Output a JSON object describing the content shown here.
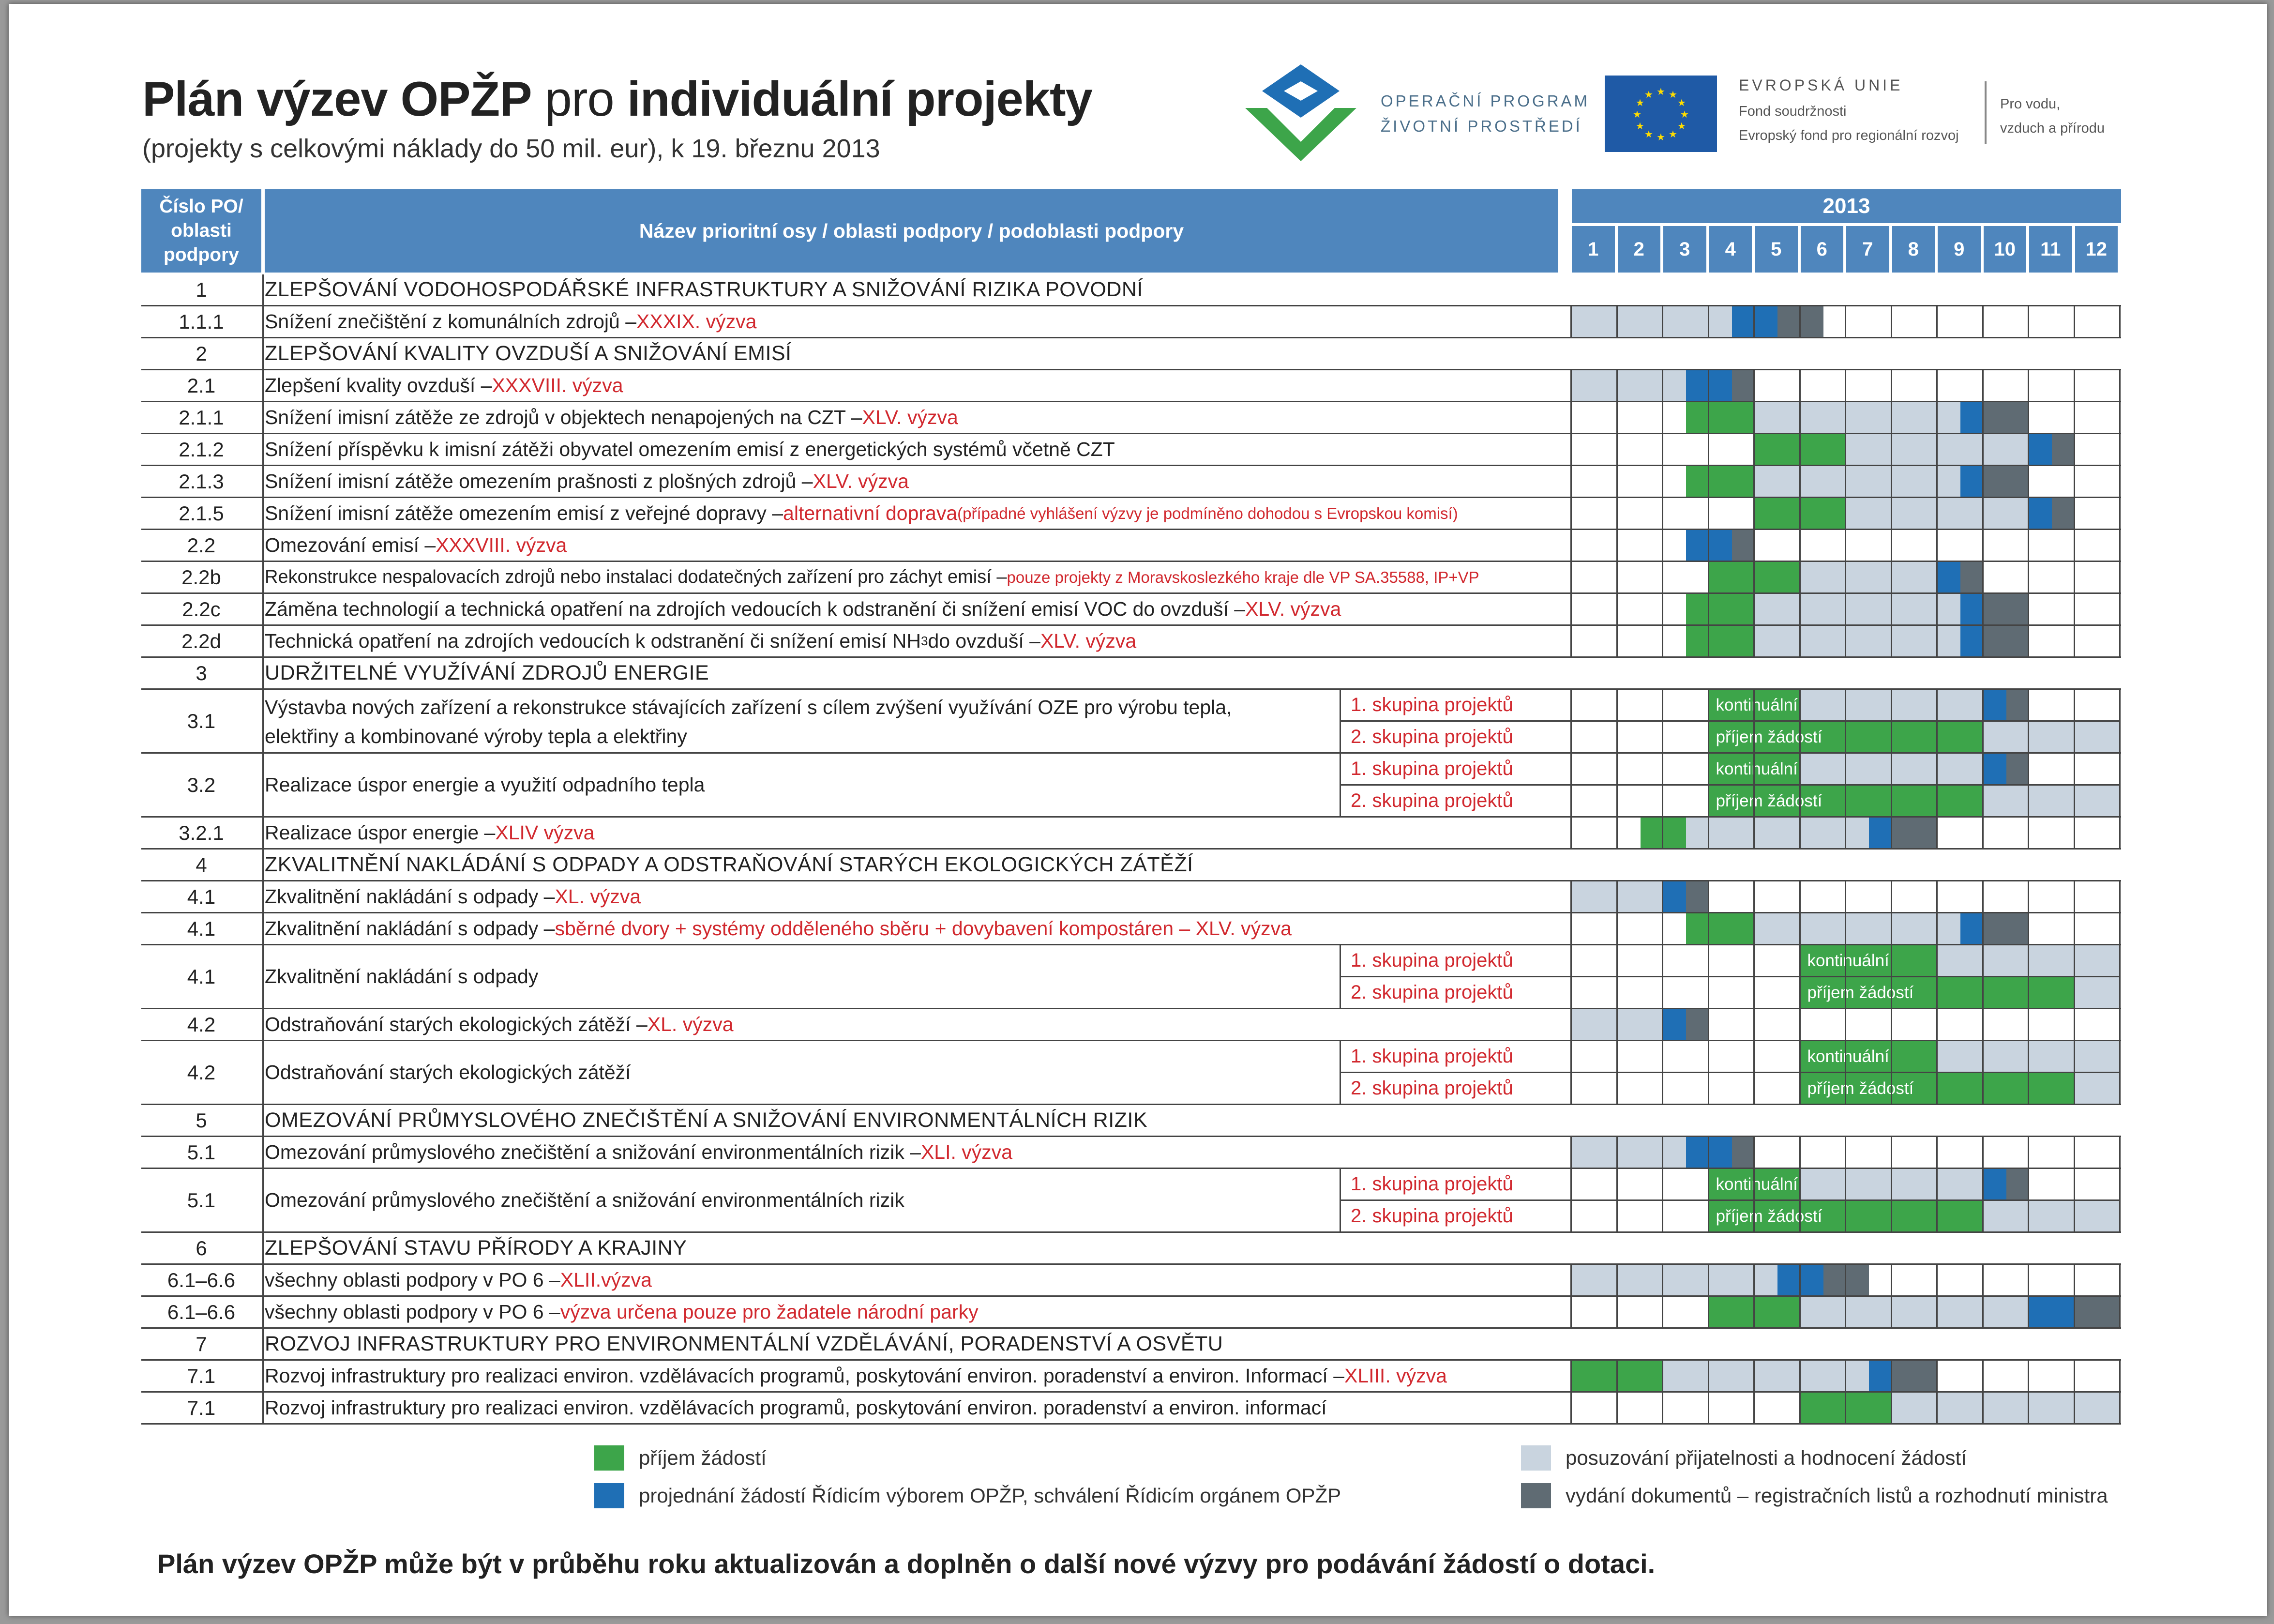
{
  "header": {
    "title_bold1": "Plán výzev OPŽP",
    "title_mid": " pro ",
    "title_bold2": "individuální projekty",
    "subtitle": "(projekty s celkovými náklady do 50 mil. eur), k 19. březnu 2013"
  },
  "logos": {
    "opzp_line1": "OPERAČNÍ PROGRAM",
    "opzp_line2": "ŽIVOTNÍ PROSTŘEDÍ",
    "eu_title": "EVROPSKÁ UNIE",
    "eu_line1": "Fond soudržnosti",
    "eu_line2": "Evropský fond pro regionální rozvoj",
    "motto_line1": "Pro vodu,",
    "motto_line2": "vzduch a přírodu"
  },
  "table_header": {
    "col_num": "Číslo PO/ oblasti podpory",
    "col_name": "Název prioritní osy / oblasti podpory / podoblasti podpory",
    "year": "2013",
    "months": [
      "1",
      "2",
      "3",
      "4",
      "5",
      "6",
      "7",
      "8",
      "9",
      "10",
      "11",
      "12"
    ]
  },
  "colors": {
    "header_blue": "#4f86bd",
    "green": "#3da54a",
    "blue": "#1f6fb5",
    "light": "#c9d4df",
    "gray": "#5f6b73",
    "red_text": "#d1282e"
  },
  "rows": [
    {
      "num": "1",
      "pa": true,
      "name": "ZLEPŠOVÁNÍ VODOHOSPODÁŘSKÉ INFRASTRUKTURY A SNIŽOVÁNÍ RIZIKA POVODNÍ"
    },
    {
      "num": "1.1.1",
      "name": "Snížení znečištění z komunálních zdrojů – ",
      "red": "XXXIX. výzva",
      "cells": "L0-3.5,B3.5-4.5,G4.5-5.5"
    },
    {
      "num": "2",
      "pa": true,
      "name": "ZLEPŠOVÁNÍ KVALITY OVZDUŠÍ A SNIŽOVÁNÍ EMISÍ"
    },
    {
      "num": "2.1",
      "name": "Zlepšení kvality ovzduší – ",
      "red": "XXXVIII. výzva",
      "cells": "L0-2.5,B2.5-3.5,G3.5-4"
    },
    {
      "num": "2.1.1",
      "name": "Snížení imisní zátěže ze zdrojů v objektech nenapojených na CZT – ",
      "red": "XLV. výzva",
      "cells": "N2.5-4,E4-5,L5-8.5,B8.5-9,G9-10"
    },
    {
      "num": "2.1.2",
      "name": "Snížení příspěvku k imisní zátěži obyvatel omezením emisí z energetických systémů včetně CZT",
      "cells": "N4-6,L6-10,B10-10.5,G10.5-11"
    },
    {
      "num": "2.1.3",
      "name": "Snížení imisní zátěže omezením prašnosti z plošných zdrojů – ",
      "red": "XLV. výzva",
      "cells": "N2.5-4,E4-5,L5-8.5,B8.5-9,G9-10"
    },
    {
      "num": "2.1.5",
      "name": "Snížení imisní zátěže omezením emisí z veřejné dopravy – ",
      "red": "alternativní doprava ",
      "redsmall": "(případné vyhlášení výzvy je podmíněno dohodou s Evropskou komisí)",
      "cells": "N4-6,L6-10,B10-10.5,G10.5-11"
    },
    {
      "num": "2.2",
      "name": "Omezování emisí – ",
      "red": "XXXVIII. výzva",
      "cells": "L2.5-2.5,B2.5-3.5,G3.5-4"
    },
    {
      "num": "2.2b",
      "name": "Rekonstrukce nespalovacích zdrojů nebo instalaci dodatečných zařízení pro záchyt emisí – ",
      "redsmall": "pouze projekty z Moravskoslezkého kraje dle VP SA.35588, IP+VP",
      "small": true,
      "cells": "N3-5,L5-8,B8-8.5,G8.5-9"
    },
    {
      "num": "2.2c",
      "name": "Záměna technologií a technická opatření na zdrojích vedoucích k odstranění či snížení emisí VOC do ovzduší – ",
      "red": "XLV. výzva",
      "cells": "N2.5-4,E4-5,L5-8.5,B8.5-9,G9-10"
    },
    {
      "num": "2.2d",
      "name": "Technická opatření na zdrojích vedoucích k odstranění či snížení emisí NH",
      "sub3": "3",
      "name2": " do ovzduší – ",
      "red": "XLV. výzva",
      "cells": "N2.5-4,E4-5,L5-8.5,B8.5-9,G9-10"
    },
    {
      "num": "3",
      "pa": true,
      "name": "UDRŽITELNÉ VYUŽÍVÁNÍ ZDROJŮ ENERGIE"
    },
    {
      "num": "3.1",
      "double": true,
      "name": "Výstavba nových zařízení a rekonstrukce stávajících zařízení s cílem zvýšení využívání OZE pro výrobu tepla,",
      "name_l2": "elektřiny a kombinované výroby tepla a elektřiny",
      "g1": "1. skupina projektů",
      "g2": "2. skupina projektů",
      "k1": "kontinuální",
      "k2": "příjem žádostí",
      "cells1": "K3-5,L5-9,B9-9.5,G9.5-10",
      "cells2": "K3-9,L9-12"
    },
    {
      "num": "3.2",
      "double": true,
      "name": "Realizace úspor energie a využití odpadního tepla",
      "g1": "1. skupina projektů",
      "g2": "2. skupina projektů",
      "k1": "kontinuální",
      "k2": "příjem žádostí",
      "cells1": "K3-5,L5-9,B9-9.5,G9.5-10",
      "cells2": "K3-9,L9-12"
    },
    {
      "num": "3.2.1",
      "name": "Realizace úspor energie – ",
      "red": "XLIV výzva",
      "cells": "N1.5-2.5,L2.5-6.5,B6.5-7,G7-8"
    },
    {
      "num": "4",
      "pa": true,
      "name": "ZKVALITNĚNÍ NAKLÁDÁNÍ S ODPADY A ODSTRAŇOVÁNÍ STARÝCH EKOLOGICKÝCH ZÁTĚŽÍ"
    },
    {
      "num": "4.1",
      "name": "Zkvalitnění nakládání s odpady – ",
      "red": "XL. výzva",
      "cells": "L0-2,B2-2.5,G2.5-3"
    },
    {
      "num": "4.1",
      "name": "Zkvalitnění nakládání s odpady – ",
      "red": "sběrné dvory + systémy odděleného sběru + dovybavení kompostáren – XLV. výzva",
      "cells": "N2.5-4,E4-5,L5-8.5,B8.5-9,G9-10"
    },
    {
      "num": "4.1",
      "double": true,
      "name": "Zkvalitnění nakládání s odpady",
      "g1": "1. skupina projektů",
      "g2": "2. skupina projektů",
      "k1": "kontinuální",
      "k2": "příjem žádostí",
      "cells1": "K5-8,L8-12",
      "cells2": "K5-11,L11-12"
    },
    {
      "num": "4.2",
      "name": "Odstraňování starých ekologických zátěží – ",
      "red": "XL. výzva",
      "cells": "L0-2,B2-2.5,G2.5-3"
    },
    {
      "num": "4.2",
      "double": true,
      "name": "Odstraňování starých ekologických zátěží",
      "g1": "1. skupina projektů",
      "g2": "2. skupina projektů",
      "k1": "kontinuální",
      "k2": "příjem žádostí",
      "cells1": "K5-8,L8-12",
      "cells2": "K5-11,L11-12"
    },
    {
      "num": "5",
      "pa": true,
      "name": "OMEZOVÁNÍ PRŮMYSLOVÉHO ZNEČIŠTĚNÍ  A SNIŽOVÁNÍ ENVIRONMENTÁLNÍCH RIZIK"
    },
    {
      "num": "5.1",
      "name": "Omezování průmyslového znečištění a snižování environmentálních rizik – ",
      "red": "XLI. výzva",
      "cells": "L0-2.5,B2.5-3.5,G3.5-4"
    },
    {
      "num": "5.1",
      "double": true,
      "name": "Omezování průmyslového znečištění a snižování environmentálních rizik",
      "g1": "1. skupina projektů",
      "g2": "2. skupina projektů",
      "k1": "kontinuální",
      "k2": "příjem žádostí",
      "cells1": "K3-5,L5-9,B9-9.5,G9.5-10",
      "cells2": "K3-9,L9-12"
    },
    {
      "num": "6",
      "pa": true,
      "name": "ZLEPŠOVÁNÍ STAVU PŘÍRODY A KRAJINY"
    },
    {
      "num": "6.1–6.6",
      "name": "všechny oblasti podpory v PO 6 – ",
      "red": "XLII.výzva",
      "cells": "L0-4.5,B4.5-5.5,G5.5-6.5"
    },
    {
      "num": "6.1–6.6",
      "name": "všechny oblasti podpory v PO 6 – ",
      "red": "výzva určena pouze pro žadatele národní parky",
      "cells": "N3-5,L5-10,B10-11,G11-12"
    },
    {
      "num": "7",
      "pa": true,
      "name": "ROZVOJ INFRASTRUKTURY PRO ENVIRONMENTÁLNÍ VZDĚLÁVÁNÍ, PORADENSTVÍ A OSVĚTU"
    },
    {
      "num": "7.1",
      "name": "Rozvoj infrastruktury pro realizaci environ. vzdělávacích programů, poskytování environ. poradenství a environ. Informací – ",
      "red": "XLIII. výzva",
      "cells": "N0-2,L2-6.5,B6.5-7,G7-8"
    },
    {
      "num": "7.1",
      "name": "Rozvoj infrastruktury pro realizaci environ. vzdělávacích programů, poskytování environ. poradenství a environ. informací",
      "cells": "N5-7,L7-12"
    }
  ],
  "legend": {
    "green": "příjem žádostí",
    "blue": "projednání žádostí Řídicím výborem OPŽP, schválení Řídicím orgánem OPŽP",
    "light": "posuzování přijatelnosti a hodnocení žádostí",
    "gray": "vydání dokumentů – registračních listů a rozhodnutí ministra"
  },
  "footer": "Plán výzev OPŽP může být v průběhu roku aktualizován a doplněn o další nové výzvy pro podávání žádostí o dotaci."
}
